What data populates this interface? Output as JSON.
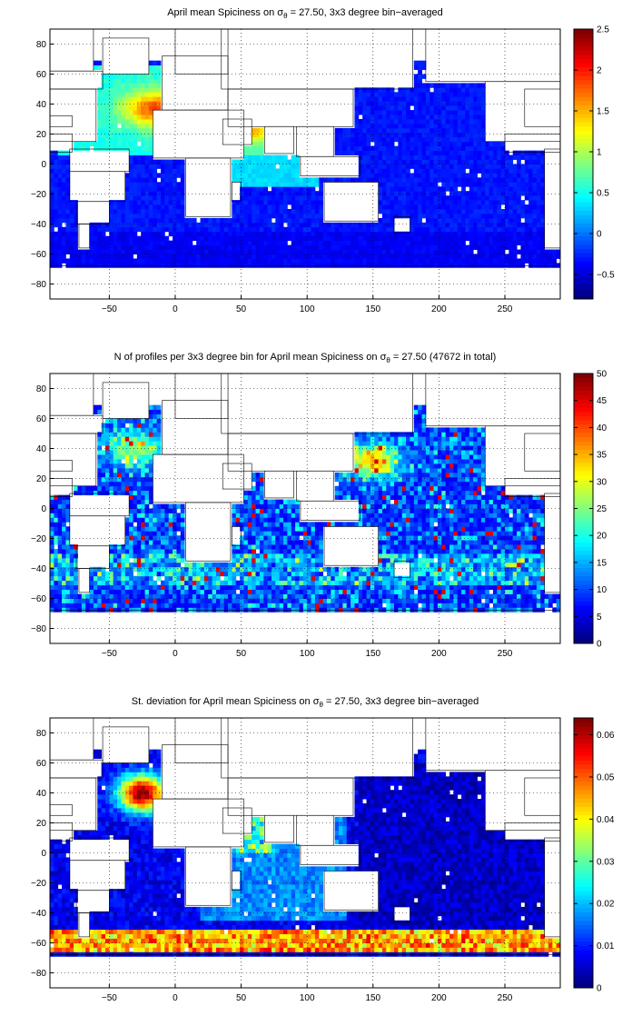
{
  "panels": [
    {
      "title_parts": {
        "pre": "April mean Spiciness on ",
        "sigma": "σ",
        "sub": "θ",
        "post": " = 27.50, 3x3 degree bin−averaged"
      },
      "xlim": [
        -95,
        292
      ],
      "ylim": [
        -90,
        90
      ],
      "x_ticks": [
        "-50",
        "0",
        "50",
        "100",
        "150",
        "200",
        "250"
      ],
      "y_ticks": [
        "80",
        "60",
        "40",
        "20",
        "0",
        "-20",
        "-40",
        "-60",
        "-80"
      ],
      "colorbar": {
        "min": -0.8,
        "max": 2.5,
        "ticks": [
          "2.5",
          "2",
          "1.5",
          "1",
          "0.5",
          "0",
          "-0.5"
        ],
        "colormap": "jet"
      }
    },
    {
      "title_parts": {
        "pre": "N of profiles per 3x3 degree bin for April mean Spiciness on ",
        "sigma": "σ",
        "sub": "θ",
        "post": " = 27.50 (47672 in total)"
      },
      "xlim": [
        -95,
        292
      ],
      "ylim": [
        -90,
        90
      ],
      "x_ticks": [
        "-50",
        "0",
        "50",
        "100",
        "150",
        "200",
        "250"
      ],
      "y_ticks": [
        "80",
        "60",
        "40",
        "20",
        "0",
        "-20",
        "-40",
        "-60",
        "-80"
      ],
      "colorbar": {
        "min": 0,
        "max": 50,
        "ticks": [
          "50",
          "45",
          "40",
          "35",
          "30",
          "25",
          "20",
          "15",
          "10",
          "5",
          "0"
        ],
        "colormap": "jet"
      }
    },
    {
      "title_parts": {
        "pre": "St. deviation for April mean Spiciness on ",
        "sigma": "σ",
        "sub": "θ",
        "post": " = 27.50, 3x3 degree bin−averaged"
      },
      "xlim": [
        -95,
        292
      ],
      "ylim": [
        -90,
        90
      ],
      "x_ticks": [
        "-50",
        "0",
        "50",
        "100",
        "150",
        "200",
        "250"
      ],
      "y_ticks": [
        "80",
        "60",
        "40",
        "20",
        "0",
        "-20",
        "-40",
        "-60",
        "-80"
      ],
      "colorbar": {
        "min": 0,
        "max": 0.064,
        "ticks": [
          "0.06",
          "0.05",
          "0.04",
          "0.03",
          "0.02",
          "0.01",
          "0"
        ],
        "colormap": "jet"
      }
    }
  ]
}
